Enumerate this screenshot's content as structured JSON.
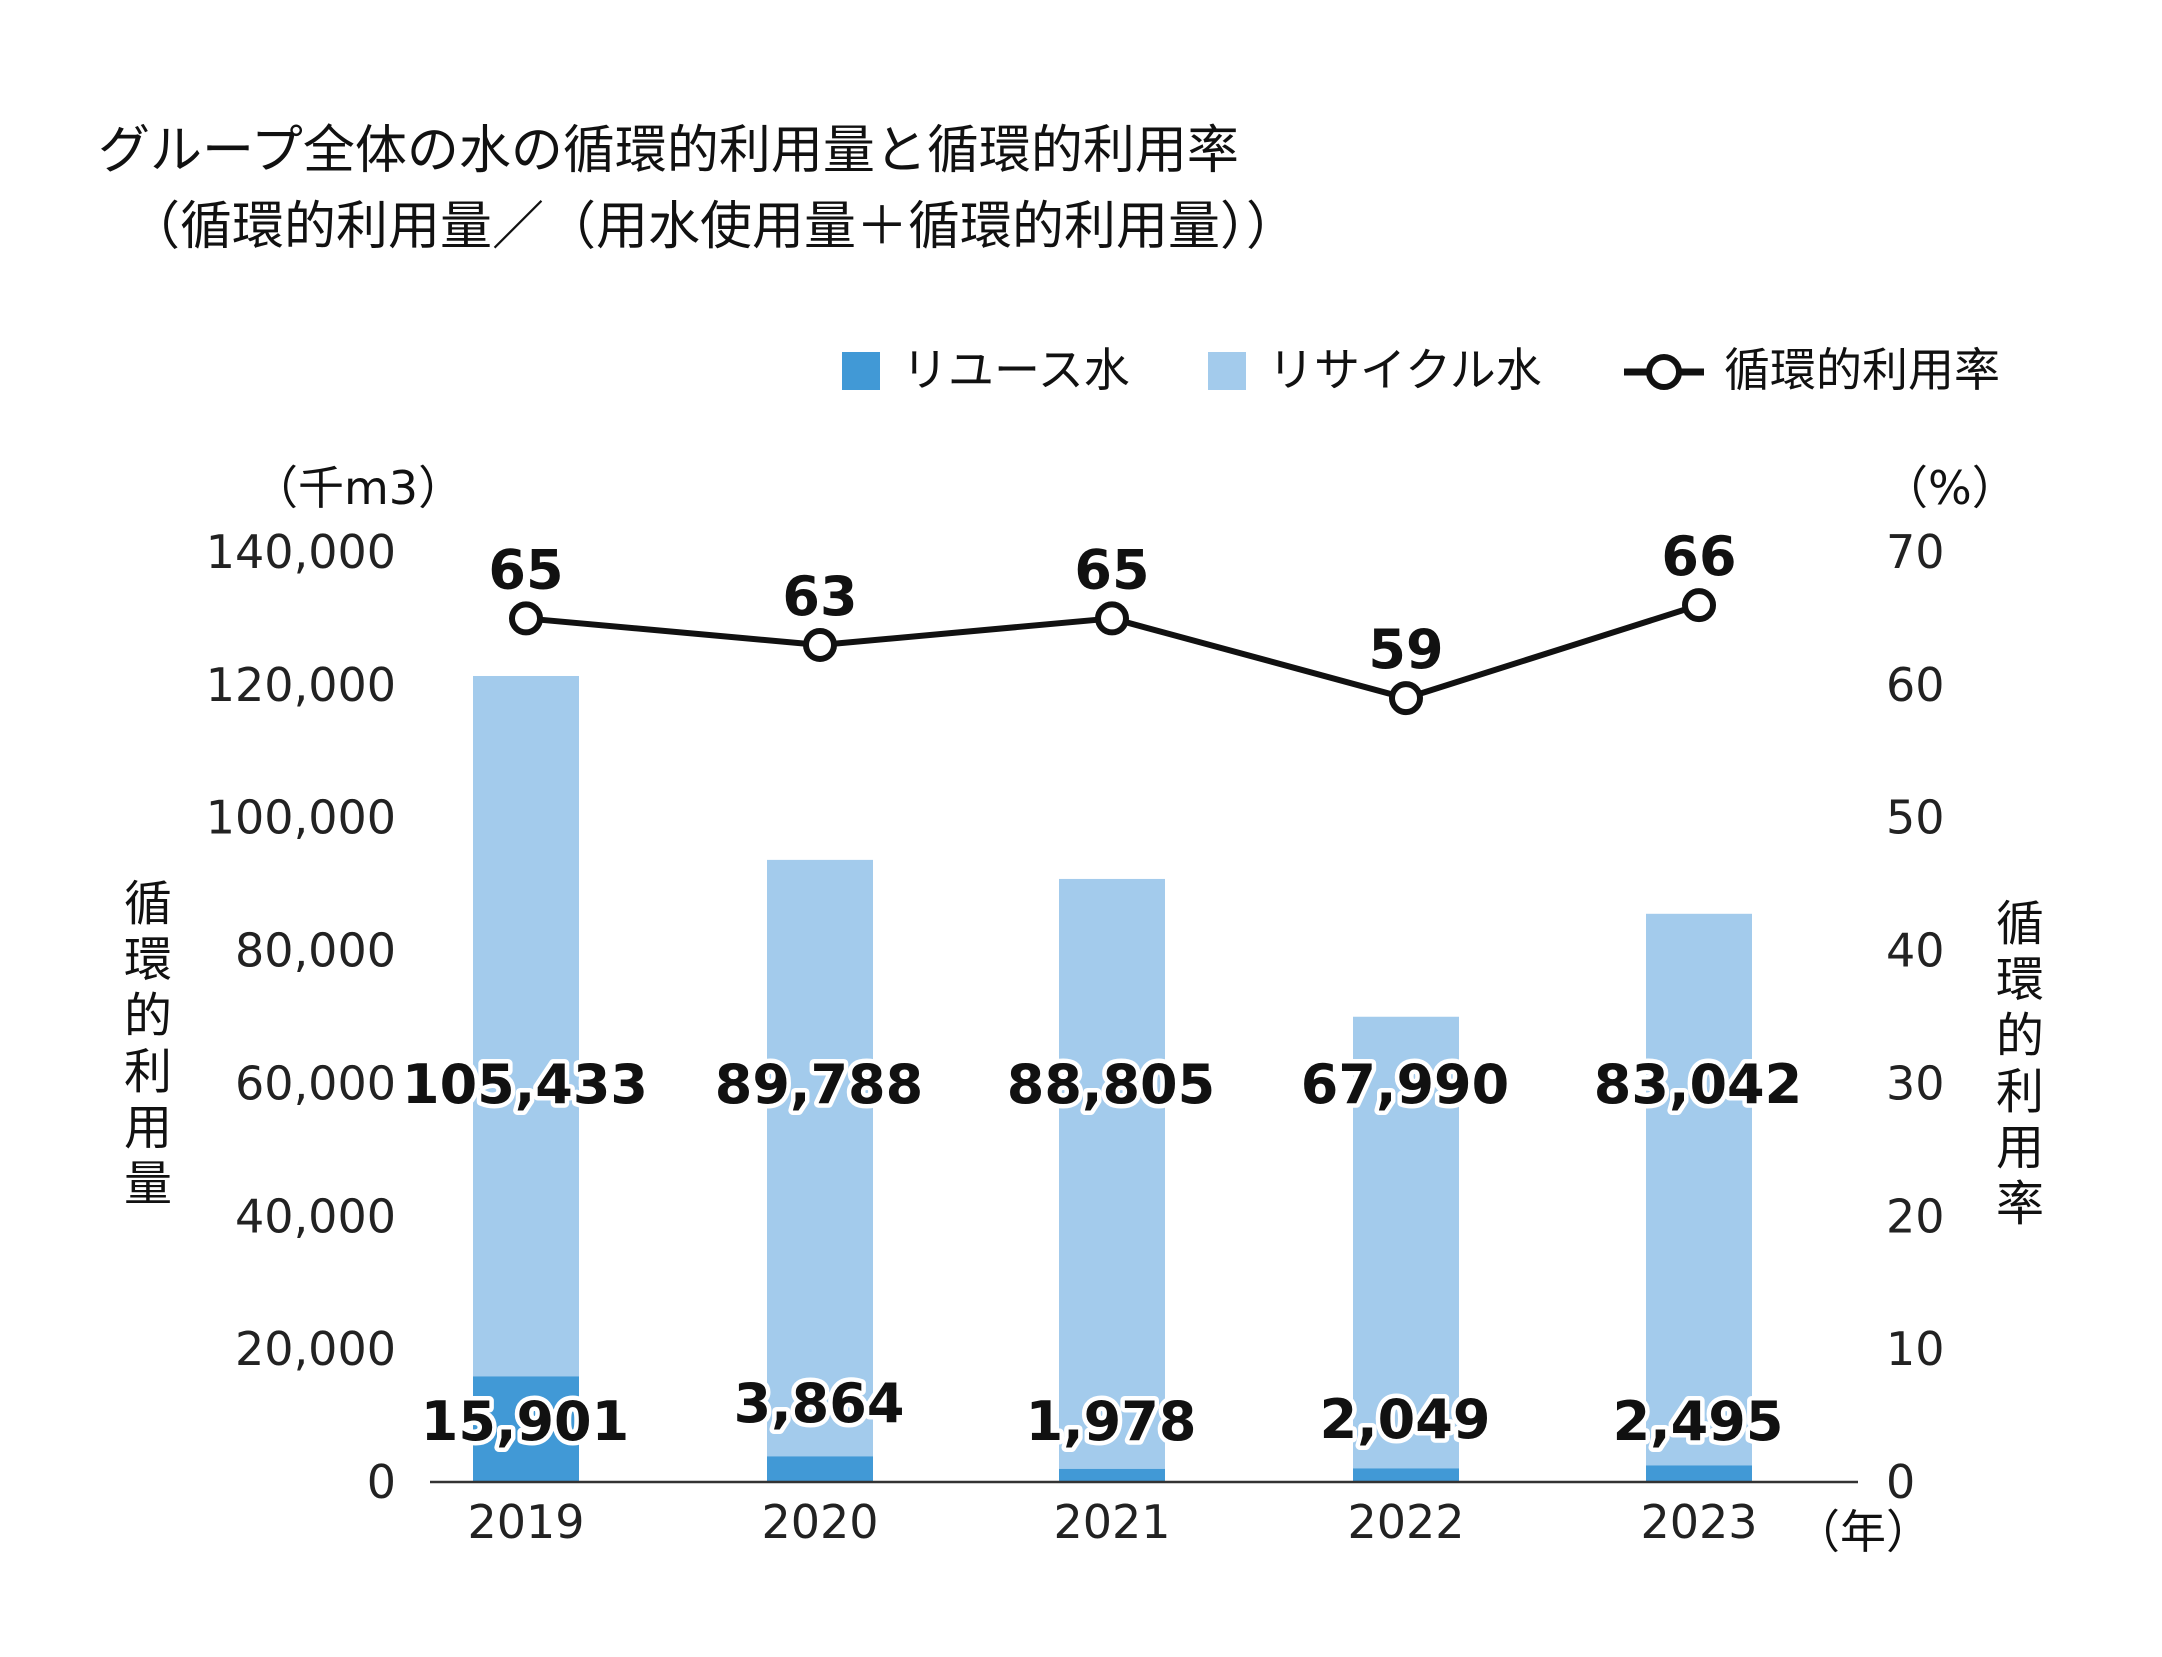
{
  "chart_data": {
    "type": "bar",
    "title": "グループ全体の水の循環的利用量と循環的利用率",
    "subtitle": "（循環的利用量／（用水使用量＋循環的利用量））",
    "categories": [
      "2019",
      "2020",
      "2021",
      "2022",
      "2023"
    ],
    "series": [
      {
        "name": "リユース水",
        "kind": "bar",
        "stack": "total",
        "color": "#4199d6",
        "values": [
          15901,
          3864,
          1978,
          2049,
          2495
        ]
      },
      {
        "name": "リサイクル水",
        "kind": "bar",
        "stack": "total",
        "color": "#a3cbec",
        "values": [
          105433,
          89788,
          88805,
          67990,
          83042
        ]
      },
      {
        "name": "循環的利用率",
        "kind": "line",
        "axis": "right",
        "color": "#111111",
        "values": [
          65,
          63,
          65,
          59,
          66
        ]
      }
    ],
    "y_left": {
      "label": "循環的利用量",
      "unit": "（千m3）",
      "ylim": [
        0,
        140000
      ],
      "ticks": [
        "0",
        "20,000",
        "40,000",
        "60,000",
        "80,000",
        "100,000",
        "120,000",
        "140,000"
      ]
    },
    "y_right": {
      "label": "循環的利用率",
      "unit": "（%）",
      "ylim": [
        0,
        70
      ],
      "ticks": [
        "0",
        "10",
        "20",
        "30",
        "40",
        "50",
        "60",
        "70"
      ]
    },
    "x_unit": "（年）",
    "reuse_labels": [
      "15,901",
      "3,864",
      "1,978",
      "2,049",
      "2,495"
    ],
    "recycle_labels": [
      "105,433",
      "89,788",
      "88,805",
      "67,990",
      "83,042"
    ],
    "rate_labels": [
      "65",
      "63",
      "65",
      "59",
      "66"
    ],
    "legend_position": "top-right",
    "grid": false
  }
}
